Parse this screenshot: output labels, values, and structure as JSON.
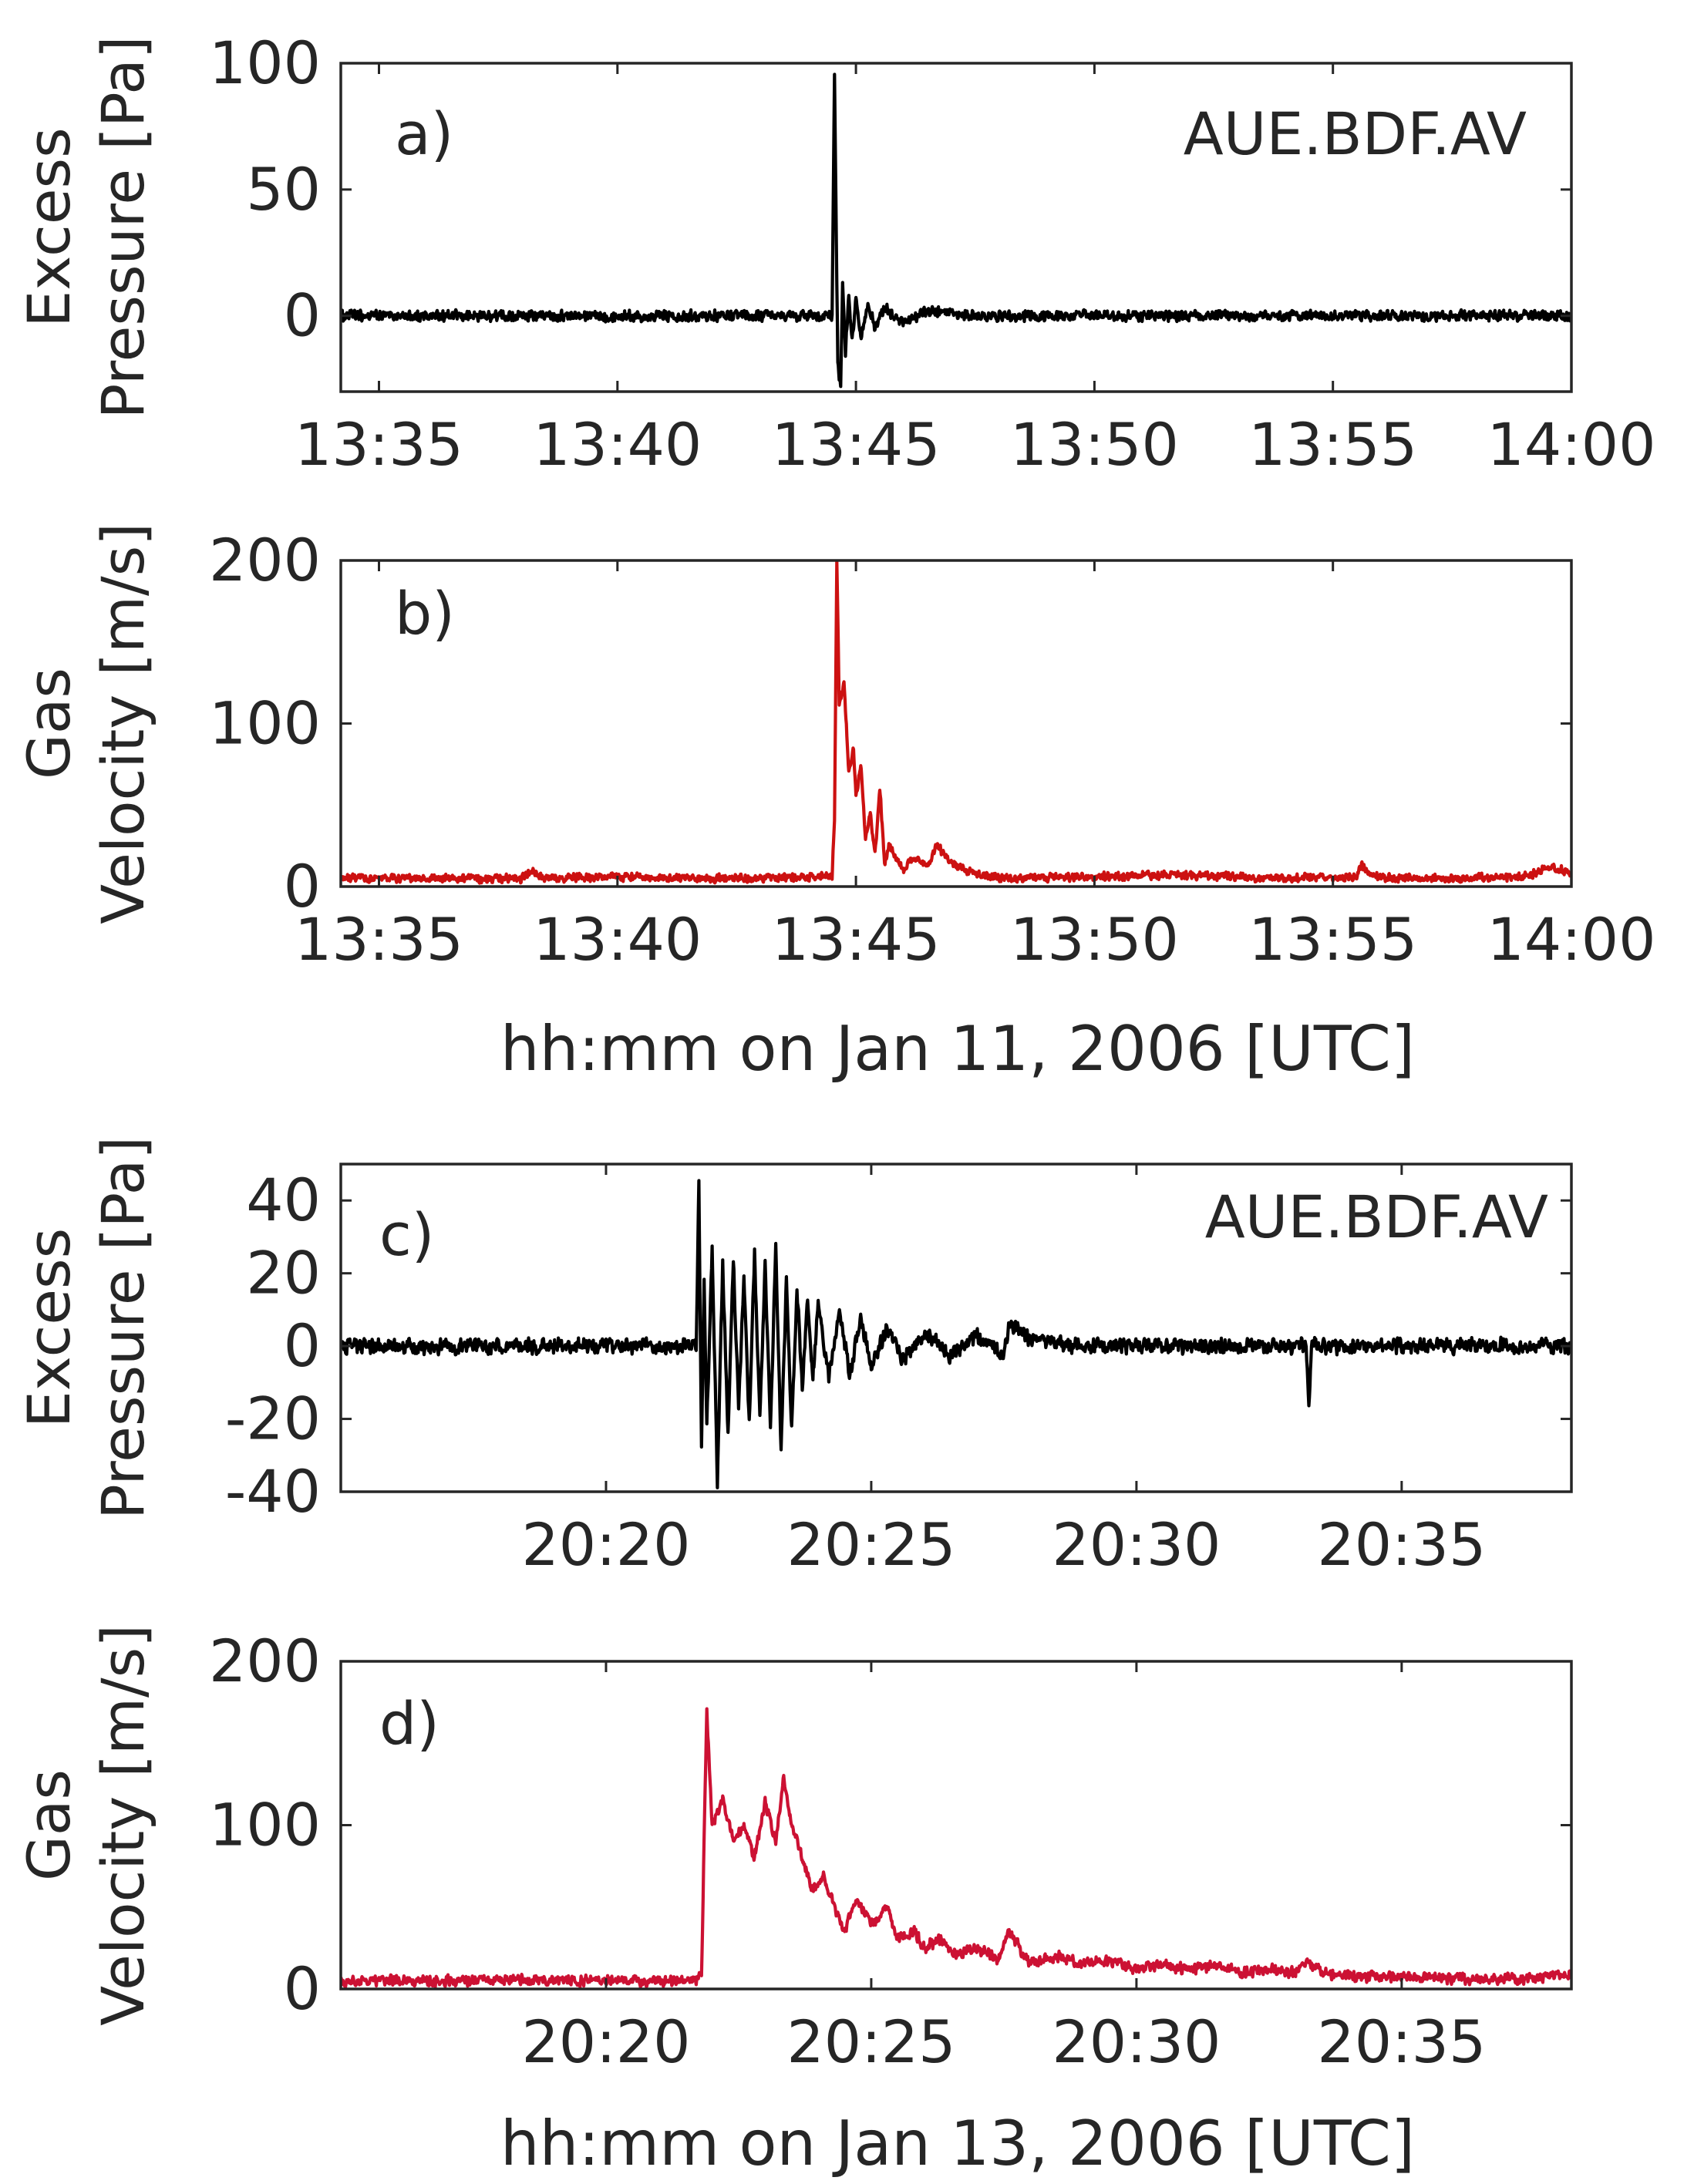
{
  "colors": {
    "pressure": "#000000",
    "velocity_b": "#cc1111",
    "velocity_d": "#cc1133",
    "axes": "#262626"
  },
  "figure": {
    "xlabel_top": "hh:mm on Jan 11, 2006 [UTC]",
    "xlabel_bottom": "hh:mm on Jan 13, 2006 [UTC]"
  },
  "chart_data": [
    {
      "id": "a",
      "type": "line",
      "panel_label": "a)",
      "annotation": "AUE.BDF.AV",
      "ylabel": [
        "Excess",
        "Pressure [Pa]"
      ],
      "xlabel": "",
      "x_unit": "minutes after 13:00 UTC, Jan 11, 2006",
      "xlim": [
        34.2,
        60.0
      ],
      "ylim": [
        -30,
        100
      ],
      "yticks": [
        0,
        50,
        100
      ],
      "ytick_labels": [
        "0",
        "50",
        "100"
      ],
      "xticks": [
        35,
        40,
        45,
        50,
        55,
        60
      ],
      "xtick_labels": [
        "13:35",
        "13:40",
        "13:45",
        "13:50",
        "13:55",
        "14:00"
      ],
      "grid": false,
      "series": [
        {
          "color": "#000000",
          "baseline": 0,
          "noise": 2.5,
          "x": [
            34.2,
            44.5,
            44.55,
            44.62,
            44.68,
            44.72,
            44.78,
            44.85,
            44.92,
            45.0,
            45.1,
            45.25,
            45.4,
            45.6,
            46.0,
            46.5,
            47.2,
            60.0
          ],
          "y": [
            0,
            0,
            95,
            -20,
            -28,
            12,
            -15,
            9,
            -10,
            7,
            -8,
            5,
            -5,
            3,
            -3,
            2,
            0,
            0
          ]
        }
      ]
    },
    {
      "id": "b",
      "type": "line",
      "panel_label": "b)",
      "ylabel": [
        "Gas",
        "Velocity [m/s]"
      ],
      "xlabel": "",
      "x_unit": "minutes after 13:00 UTC, Jan 11, 2006",
      "xlim": [
        34.2,
        60.0
      ],
      "ylim": [
        0,
        200
      ],
      "yticks": [
        0,
        100,
        200
      ],
      "ytick_labels": [
        "0",
        "100",
        "200"
      ],
      "xticks": [
        35,
        40,
        45,
        50,
        55,
        60
      ],
      "xtick_labels": [
        "13:35",
        "13:40",
        "13:45",
        "13:50",
        "13:55",
        "14:00"
      ],
      "grid": false,
      "series": [
        {
          "color": "#cc1111",
          "noise": 3,
          "x": [
            34.2,
            38.0,
            38.2,
            38.4,
            40.0,
            42.0,
            44.5,
            44.55,
            44.6,
            44.65,
            44.75,
            44.85,
            44.95,
            45.0,
            45.1,
            45.2,
            45.3,
            45.4,
            45.5,
            45.6,
            45.7,
            46.0,
            46.2,
            46.5,
            46.7,
            47.0,
            47.3,
            48.0,
            50.0,
            52.0,
            54.0,
            55.5,
            55.6,
            55.8,
            57.0,
            59.0,
            59.6,
            60.0
          ],
          "y": [
            5,
            5,
            10,
            5,
            6,
            5,
            6,
            40,
            200,
            110,
            125,
            70,
            85,
            55,
            75,
            30,
            45,
            20,
            60,
            15,
            25,
            10,
            18,
            12,
            25,
            15,
            10,
            5,
            6,
            7,
            5,
            6,
            14,
            6,
            5,
            6,
            12,
            8
          ]
        }
      ]
    },
    {
      "id": "c",
      "type": "line",
      "panel_label": "c)",
      "annotation": "AUE.BDF.AV",
      "ylabel": [
        "Excess",
        "Pressure [Pa]"
      ],
      "xlabel": "",
      "x_unit": "minutes after 20:00 UTC, Jan 13, 2006",
      "xlim": [
        15.0,
        38.2
      ],
      "ylim": [
        -40,
        50
      ],
      "yticks": [
        -40,
        -20,
        0,
        20,
        40
      ],
      "ytick_labels": [
        "-40",
        "-20",
        "0",
        "20",
        "40"
      ],
      "xticks": [
        20,
        25,
        30,
        35
      ],
      "xtick_labels": [
        "20:20",
        "20:25",
        "20:30",
        "20:35"
      ],
      "grid": false,
      "series": [
        {
          "color": "#000000",
          "baseline": 0,
          "noise": 2.5,
          "x": [
            15.0,
            21.7,
            21.75,
            21.8,
            21.85,
            21.9,
            22.0,
            22.1,
            22.2,
            22.3,
            22.4,
            22.5,
            22.6,
            22.7,
            22.8,
            22.9,
            23.0,
            23.1,
            23.2,
            23.3,
            23.4,
            23.5,
            23.6,
            23.7,
            23.8,
            23.9,
            24.0,
            24.2,
            24.4,
            24.6,
            24.8,
            25.0,
            25.3,
            25.6,
            26.0,
            26.5,
            27.0,
            27.5,
            27.6,
            28.0,
            29.0,
            33.2,
            33.25,
            33.3,
            33.35,
            38.2
          ],
          "y": [
            0,
            0,
            44,
            -28,
            18,
            -22,
            27,
            -38,
            22,
            -25,
            24,
            -18,
            20,
            -22,
            26,
            -20,
            22,
            -24,
            28,
            -30,
            18,
            -22,
            16,
            -12,
            14,
            -10,
            12,
            -9,
            10,
            -8,
            8,
            -6,
            5,
            -4,
            4,
            -3,
            3,
            -2,
            6,
            2,
            0,
            0,
            -15,
            0,
            0,
            0
          ]
        }
      ]
    },
    {
      "id": "d",
      "type": "line",
      "panel_label": "d)",
      "ylabel": [
        "Gas",
        "Velocity [m/s]"
      ],
      "xlabel": "",
      "x_unit": "minutes after 20:00 UTC, Jan 13, 2006",
      "xlim": [
        15.0,
        38.2
      ],
      "ylim": [
        0,
        200
      ],
      "yticks": [
        0,
        100,
        200
      ],
      "ytick_labels": [
        "0",
        "100",
        "200"
      ],
      "xticks": [
        20,
        25,
        30,
        35
      ],
      "xtick_labels": [
        "20:20",
        "20:25",
        "20:30",
        "20:35"
      ],
      "grid": false,
      "series": [
        {
          "color": "#cc1133",
          "noise": 4,
          "x": [
            15.0,
            21.7,
            21.8,
            21.9,
            22.0,
            22.2,
            22.4,
            22.6,
            22.8,
            23.0,
            23.2,
            23.35,
            23.5,
            23.7,
            23.9,
            24.1,
            24.3,
            24.5,
            24.7,
            25.0,
            25.3,
            25.5,
            25.8,
            26.0,
            26.3,
            26.6,
            27.0,
            27.4,
            27.6,
            28.0,
            28.5,
            29.0,
            29.5,
            30.0,
            30.5,
            31.0,
            31.5,
            32.0,
            32.5,
            33.0,
            33.2,
            33.5,
            34.0,
            35.0,
            36.0,
            37.0,
            38.2
          ],
          "y": [
            5,
            5,
            10,
            170,
            100,
            115,
            90,
            100,
            80,
            115,
            90,
            130,
            100,
            80,
            60,
            70,
            50,
            35,
            55,
            40,
            50,
            30,
            35,
            25,
            30,
            20,
            25,
            18,
            35,
            15,
            20,
            15,
            18,
            12,
            15,
            12,
            15,
            10,
            12,
            10,
            18,
            10,
            8,
            7,
            6,
            6,
            8
          ]
        }
      ]
    }
  ]
}
